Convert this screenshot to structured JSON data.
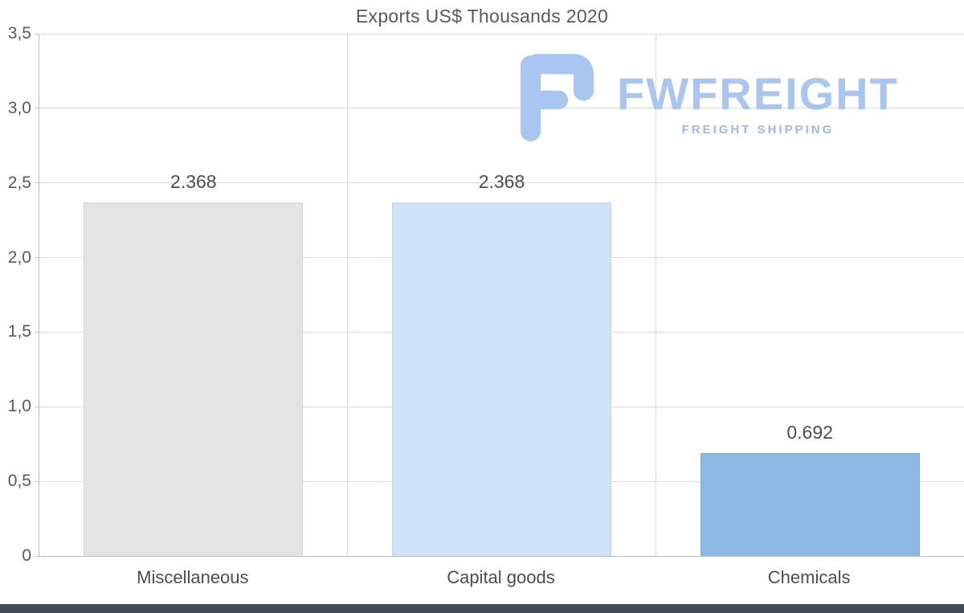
{
  "chart_data": {
    "type": "bar",
    "title": "Exports US$ Thousands 2020",
    "categories": [
      "Miscellaneous",
      "Capital goods",
      "Chemicals"
    ],
    "values": [
      2.368,
      2.368,
      0.692
    ],
    "value_labels": [
      "2.368",
      "2.368",
      "0.692"
    ],
    "series_name": "Exports US$ Thousands 2020",
    "bar_colors": [
      "#e4e4e4",
      "#cfe3f8",
      "#8cb9e3"
    ],
    "bar_border_colors": [
      "#d4d4d4",
      "#bcd6f1",
      "#7dabd8"
    ],
    "ylim": [
      0,
      3.5
    ],
    "ytick_values": [
      0,
      0.5,
      1,
      1.5,
      2,
      2.5,
      3,
      3.5
    ],
    "ytick_labels": [
      "0",
      "0,5",
      "1,0",
      "1,5",
      "2,0",
      "2,5",
      "3,0",
      "3,5"
    ],
    "grid": true,
    "legend": false,
    "xlabel": "",
    "ylabel": ""
  },
  "watermark": {
    "brand": "FWFREIGHT",
    "tagline": "FREIGHT SHIPPING",
    "brand_color": "#a9c6f0",
    "tagline_color": "#9db9ea",
    "icon": "fwfreight-logo-icon"
  },
  "footer": {
    "bar_color": "#3f4a54"
  }
}
